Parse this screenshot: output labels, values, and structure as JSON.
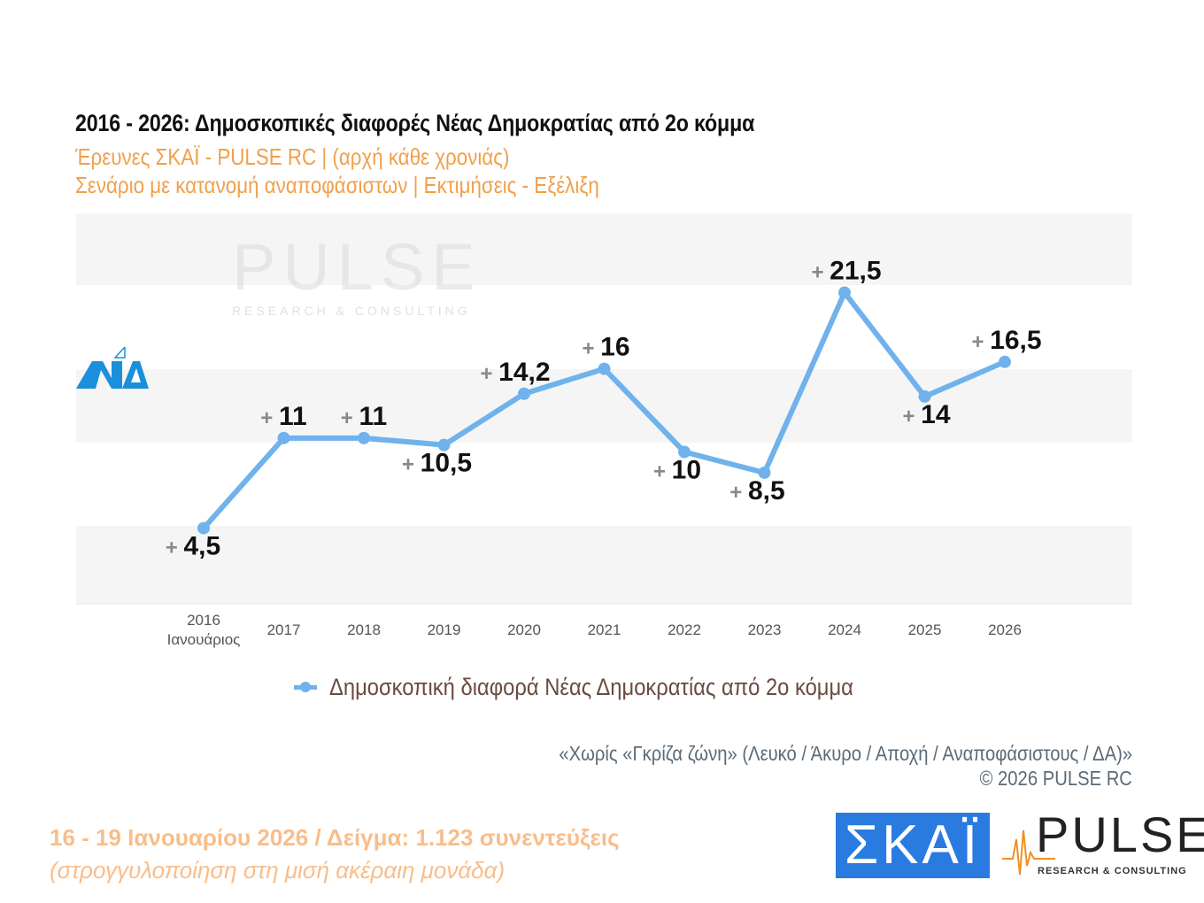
{
  "header": {
    "title": "2016 - 2026: Δημοσκοπικές διαφορές Νέας Δημοκρατίας από 2ο κόμμα",
    "subtitle1": "Έρευνες ΣΚΑΪ - PULSE RC  |  (αρχή κάθε χρονιάς)",
    "subtitle2": "Σενάριο με κατανομή αναποφάσιστων  |  Εκτιμήσεις - Εξέλιξη"
  },
  "chart_data": {
    "type": "line",
    "x": [
      "2016 Ιανουάριος",
      "2017",
      "2018",
      "2019",
      "2020",
      "2021",
      "2022",
      "2023",
      "2024",
      "2025",
      "2026"
    ],
    "tick_labels": [
      [
        "2016",
        "Ιανουάριος"
      ],
      [
        "2017"
      ],
      [
        "2018"
      ],
      [
        "2019"
      ],
      [
        "2020"
      ],
      [
        "2021"
      ],
      [
        "2022"
      ],
      [
        "2023"
      ],
      [
        "2024"
      ],
      [
        "2025"
      ],
      [
        "2026"
      ]
    ],
    "series": [
      {
        "name": "Δημοσκοπική διαφορά Νέας Δημοκρατίας από 2ο κόμμα",
        "values": [
          4.5,
          11,
          11,
          10.5,
          14.2,
          16,
          10,
          8.5,
          21.5,
          14,
          16.5
        ],
        "data_labels": [
          "4,5",
          "11",
          "11",
          "10,5",
          "14,2",
          "16",
          "10",
          "8,5",
          "21,5",
          "14",
          "16,5"
        ],
        "label_prefix": "+",
        "color": "#6fb2ec"
      }
    ],
    "ylim": [
      -1,
      27
    ],
    "y_axis_visible": false,
    "grid": "alternating horizontal bands",
    "band_color": "#f5f5f5",
    "legend": "bottom"
  },
  "notes": {
    "gray_zone": "«Χωρίς «Γκρίζα ζώνη»  (Λευκό / Άκυρο / Αποχή / Αναποφάσιστους / ΔΑ)»",
    "copyright": "©  2026  PULSE RC"
  },
  "footer": {
    "fieldwork": "16 - 19 Ιανουαρίου 2026  /  Δείγμα:  1.123 συνεντεύξεις",
    "rounding": "(στρογγυλοποίηση στη μισή ακέραιη μονάδα)"
  },
  "logos": {
    "nd": "ΝΔ",
    "skai": "ΣΚΑΪ",
    "pulse": "PULSE",
    "pulse_tagline": "RESEARCH & CONSULTING",
    "watermark": "PULSE",
    "watermark_sub": "RESEARCH & CONSULTING"
  }
}
